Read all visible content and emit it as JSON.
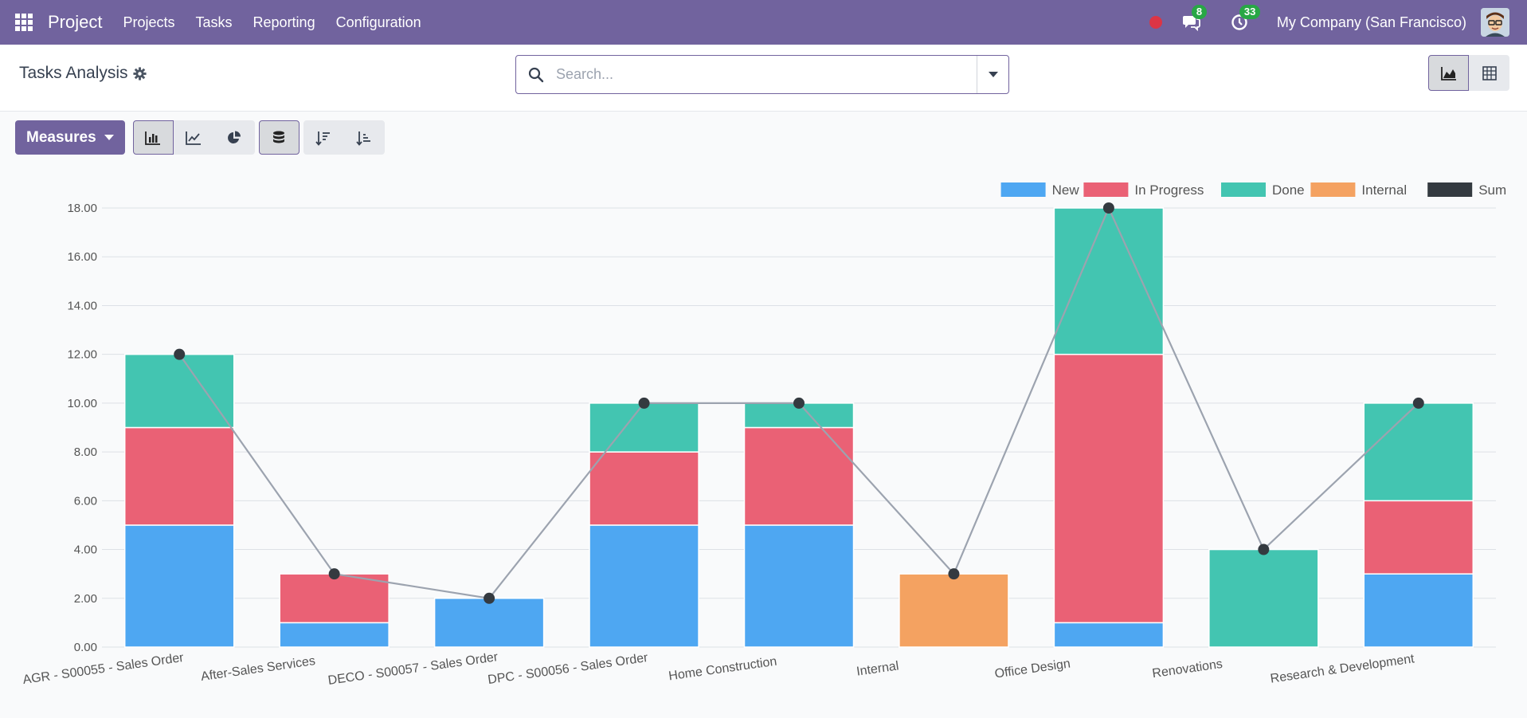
{
  "navbar": {
    "brand": "Project",
    "menu": [
      "Projects",
      "Tasks",
      "Reporting",
      "Configuration"
    ],
    "messages_count": "8",
    "activities_count": "33",
    "company": "My Company (San Francisco)"
  },
  "control_panel": {
    "title": "Tasks Analysis",
    "search_placeholder": "Search..."
  },
  "toolbar": {
    "measures_label": "Measures"
  },
  "icons": {
    "apps": "apps-grid-icon",
    "recording": "red-dot-icon",
    "messages": "chat-icon",
    "activities": "clock-icon",
    "search": "search-icon",
    "gear": "gear-icon",
    "graph_view": "area-chart-icon",
    "pivot_view": "table-grid-icon",
    "bar": "bar-chart-icon",
    "line": "line-chart-icon",
    "pie": "pie-chart-icon",
    "stacked": "database-stack-icon",
    "desc": "sort-descending-icon",
    "asc": "sort-ascending-icon"
  },
  "colors": {
    "brand": "#71639e",
    "new": "#4ea7f2",
    "in_progress": "#ea6175",
    "done": "#43c5b1",
    "internal": "#f4a261",
    "sum": "#343a40"
  },
  "chart_data": {
    "type": "bar",
    "stacked": true,
    "categories": [
      "AGR - S00055 - Sales Order",
      "After-Sales Services",
      "DECO - S00057 - Sales Order",
      "DPC - S00056 - Sales Order",
      "Home Construction",
      "Internal",
      "Office Design",
      "Renovations",
      "Research & Development"
    ],
    "series": [
      {
        "name": "New",
        "values": [
          5,
          1,
          2,
          5,
          5,
          0,
          1,
          0,
          3
        ],
        "color": "#4ea7f2"
      },
      {
        "name": "In Progress",
        "values": [
          4,
          2,
          0,
          3,
          4,
          0,
          11,
          0,
          3
        ],
        "color": "#ea6175"
      },
      {
        "name": "Done",
        "values": [
          3,
          0,
          0,
          2,
          1,
          0,
          6,
          4,
          4
        ],
        "color": "#43c5b1"
      },
      {
        "name": "Internal",
        "values": [
          0,
          0,
          0,
          0,
          0,
          3,
          0,
          0,
          0
        ],
        "color": "#f4a261"
      },
      {
        "name": "Sum",
        "type": "line",
        "values": [
          12,
          3,
          2,
          10,
          10,
          3,
          18,
          4,
          10
        ],
        "color": "#343a40"
      }
    ],
    "y_ticks": [
      "0.00",
      "2.00",
      "4.00",
      "6.00",
      "8.00",
      "10.00",
      "12.00",
      "14.00",
      "16.00",
      "18.00"
    ],
    "ylim": [
      0,
      18
    ],
    "grid": true,
    "legend_position": "top-right"
  }
}
